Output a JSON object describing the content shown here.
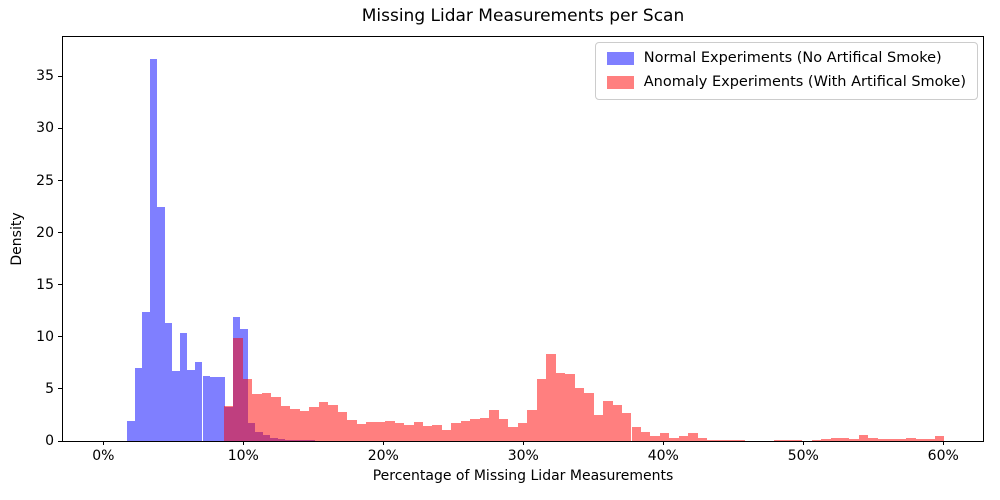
{
  "chart_data": {
    "type": "histogram",
    "title": "Missing Lidar Measurements per Scan",
    "xlabel": "Percentage of Missing Lidar Measurements",
    "ylabel": "Density",
    "legend_position": "upper right",
    "grid": false,
    "background_color": "#ffffff",
    "axes_ranges": {
      "x_min_pct": -2.88,
      "x_max_pct": 62.84,
      "y_min": 0,
      "y_max": 38.78
    },
    "x_ticks": [
      {
        "pct": 0,
        "label": "0%"
      },
      {
        "pct": 10,
        "label": "10%"
      },
      {
        "pct": 20,
        "label": "20%"
      },
      {
        "pct": 30,
        "label": "30%"
      },
      {
        "pct": 40,
        "label": "40%"
      },
      {
        "pct": 50,
        "label": "50%"
      },
      {
        "pct": 60,
        "label": "60%"
      }
    ],
    "y_ticks": [
      {
        "value": 0,
        "label": "0"
      },
      {
        "value": 5,
        "label": "5"
      },
      {
        "value": 10,
        "label": "10"
      },
      {
        "value": 15,
        "label": "15"
      },
      {
        "value": 20,
        "label": "20"
      },
      {
        "value": 25,
        "label": "25"
      },
      {
        "value": 30,
        "label": "30"
      },
      {
        "value": 35,
        "label": "35"
      }
    ],
    "series": [
      {
        "id": "normal",
        "name": "Normal Experiments (No Artifical Smoke)",
        "color_hex": "#0000ff",
        "opacity": 0.5,
        "bin_start_pct": 1.71,
        "bin_width_pct": 0.5375,
        "densities": [
          1.9,
          7.0,
          12.4,
          36.7,
          22.5,
          11.3,
          6.7,
          10.4,
          6.8,
          7.6,
          6.2,
          6.1,
          6.1,
          3.3,
          11.9,
          10.8,
          1.7,
          0.9,
          0.55,
          0.25,
          0.15,
          0.12,
          0.1,
          0.08,
          0.05
        ]
      },
      {
        "id": "anomaly",
        "name": "Anomaly Experiments (With Artifical Smoke)",
        "color_hex": "#ff0000",
        "opacity": 0.5,
        "bin_start_pct": 8.62,
        "bin_width_pct": 0.677,
        "densities": [
          3.4,
          9.9,
          6.0,
          4.5,
          4.6,
          4.2,
          3.35,
          3.05,
          2.9,
          3.3,
          3.7,
          3.45,
          2.75,
          2.0,
          1.65,
          1.85,
          1.85,
          1.95,
          1.7,
          1.5,
          1.8,
          1.45,
          1.55,
          1.1,
          1.75,
          1.95,
          2.1,
          2.25,
          3.0,
          2.1,
          1.35,
          1.7,
          3.0,
          6.0,
          8.4,
          6.5,
          6.4,
          5.05,
          4.6,
          2.5,
          3.8,
          3.45,
          2.65,
          1.35,
          0.9,
          0.5,
          0.8,
          0.3,
          0.5,
          0.8,
          0.27,
          0.1,
          0.05,
          0.1,
          0.05,
          0,
          0,
          0,
          0.05,
          0.1,
          0.05,
          0,
          0.05,
          0.17,
          0.27,
          0.25,
          0.17,
          0.6,
          0.27,
          0.17,
          0.17,
          0.17,
          0.3,
          0.17,
          0.17,
          0.45
        ]
      }
    ]
  }
}
